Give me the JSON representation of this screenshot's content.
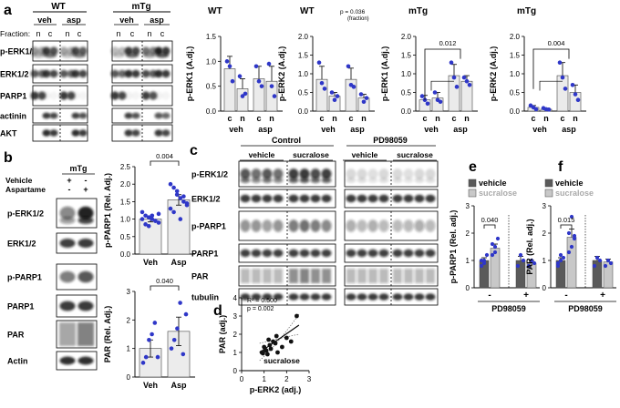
{
  "panel_a": {
    "letter": "a",
    "headers": {
      "wt": "WT",
      "mtg": "mTg",
      "veh": "veh",
      "asp": "asp"
    },
    "fraction_label": "Fraction:",
    "fraction_lanes": [
      "n",
      "c",
      "n",
      "c"
    ],
    "blot_labels": [
      "p-ERK1/2",
      "ERK1/2",
      "PARP1",
      "actinin",
      "AKT"
    ]
  },
  "panel_b": {
    "letter": "b",
    "group": "mTg",
    "treatments": [
      {
        "label": "Vehicle",
        "marks": [
          "+",
          "-"
        ]
      },
      {
        "label": "Aspartame",
        "marks": [
          "-",
          "+"
        ]
      }
    ],
    "blot_labels": [
      "p-ERK1/2",
      "ERK1/2",
      "p-PARP1",
      "PARP1",
      "PAR",
      "Actin"
    ]
  },
  "panel_c": {
    "letter": "c",
    "groups": [
      "Control",
      "PD98059"
    ],
    "treatments": [
      "vehicle",
      "sucralose",
      "vehicle",
      "sucralose"
    ],
    "blot_labels": [
      "p-ERK1/2",
      "ERK1/2",
      "p-PARP1",
      "PARP1",
      "PAR",
      "tubulin"
    ]
  },
  "panel_d": {
    "letter": "d"
  },
  "panel_e": {
    "letter": "e"
  },
  "panel_f": {
    "letter": "f"
  },
  "chart_data": [
    {
      "id": "a1",
      "type": "bar",
      "title": "WT",
      "ylabel": "p-ERK1 (A.dj.)",
      "categories": [
        "c",
        "n",
        "c",
        "n"
      ],
      "groups": [
        "veh",
        "asp"
      ],
      "values": [
        0.85,
        0.45,
        0.65,
        0.6
      ],
      "errors": [
        0.25,
        0.2,
        0.25,
        0.3
      ],
      "points": [
        [
          1.0,
          0.9,
          0.6
        ],
        [
          0.7,
          0.3,
          0.35
        ],
        [
          0.9,
          0.6,
          0.5
        ],
        [
          0.95,
          0.5,
          0.3
        ]
      ],
      "ylim": [
        0,
        1.5
      ],
      "yticks": [
        0,
        0.5,
        1,
        1.5
      ],
      "ytick_labels": [
        "0.0",
        "0.5",
        "1.0",
        "1.5"
      ]
    },
    {
      "id": "a2",
      "type": "bar",
      "title": "WT",
      "ylabel": "p-ERK2 (A.dj.)",
      "categories": [
        "c",
        "n",
        "c",
        "n"
      ],
      "groups": [
        "veh",
        "asp"
      ],
      "values": [
        0.85,
        0.4,
        0.85,
        0.35
      ],
      "errors": [
        0.35,
        0.1,
        0.3,
        0.1
      ],
      "points": [
        [
          1.3,
          0.75,
          0.6
        ],
        [
          0.5,
          0.3,
          0.4
        ],
        [
          1.2,
          0.7,
          0.65
        ],
        [
          0.45,
          0.25,
          0.35
        ]
      ],
      "ylim": [
        0,
        2.0
      ],
      "yticks": [
        0,
        0.5,
        1,
        1.5,
        2
      ],
      "ytick_labels": [
        "0.0",
        "0.5",
        "1.0",
        "1.5",
        "2.0"
      ],
      "annotations": [
        {
          "text": "p = 0.036",
          "sub": "(fraction)"
        }
      ]
    },
    {
      "id": "a3",
      "type": "bar",
      "title": "mTg",
      "ylabel": "p-ERK1 (A.dj.)",
      "categories": [
        "c",
        "n",
        "c",
        "n"
      ],
      "groups": [
        "veh",
        "asp"
      ],
      "values": [
        0.3,
        0.35,
        0.95,
        0.8
      ],
      "errors": [
        0.12,
        0.15,
        0.3,
        0.15
      ],
      "points": [
        [
          0.4,
          0.3,
          0.2
        ],
        [
          0.5,
          0.3,
          0.25
        ],
        [
          1.3,
          0.9,
          0.65
        ],
        [
          0.9,
          0.8,
          0.7
        ]
      ],
      "ylim": [
        0,
        2.0
      ],
      "yticks": [
        0,
        0.5,
        1,
        1.5,
        2
      ],
      "ytick_labels": [
        "0.0",
        "0.5",
        "1.0",
        "1.5",
        "2.0"
      ],
      "bracket": {
        "text": "0.012"
      }
    },
    {
      "id": "a4",
      "type": "bar",
      "title": "mTg",
      "ylabel": "p-ERK2 (A.dj.)",
      "categories": [
        "c",
        "n",
        "c",
        "n"
      ],
      "groups": [
        "veh",
        "asp"
      ],
      "values": [
        0.1,
        0.05,
        0.95,
        0.5
      ],
      "errors": [
        0.05,
        0.03,
        0.35,
        0.2
      ],
      "points": [
        [
          0.15,
          0.1,
          0.05
        ],
        [
          0.08,
          0.05,
          0.04
        ],
        [
          1.3,
          0.9,
          0.6
        ],
        [
          0.7,
          0.45,
          0.3
        ]
      ],
      "ylim": [
        0,
        2.0
      ],
      "yticks": [
        0,
        0.5,
        1,
        1.5,
        2
      ],
      "ytick_labels": [
        "0.0",
        "0.5",
        "1.0",
        "1.5",
        "2.0"
      ],
      "bracket": {
        "text": "0.004"
      }
    },
    {
      "id": "b1",
      "type": "bar",
      "ylabel": "p-PARP1 (Rel. Adj.)",
      "categories": [
        "Veh",
        "Asp"
      ],
      "values": [
        1.0,
        1.55
      ],
      "errors": [
        0.08,
        0.15
      ],
      "points": [
        [
          1.2,
          1.1,
          1.05,
          1.0,
          0.95,
          0.9,
          1.0,
          0.85,
          0.8,
          1.1,
          0.95,
          1.15
        ],
        [
          2.0,
          1.9,
          1.7,
          1.6,
          1.5,
          1.4,
          1.3,
          1.2,
          1.8,
          1.0,
          1.65,
          1.45
        ]
      ],
      "ylim": [
        0,
        2.5
      ],
      "yticks": [
        0,
        0.5,
        1,
        1.5,
        2,
        2.5
      ],
      "ytick_labels": [
        "0.0",
        "0.5",
        "1.0",
        "1.5",
        "2.0",
        "2.5"
      ],
      "bracket": {
        "text": "0.004"
      }
    },
    {
      "id": "b2",
      "type": "bar",
      "ylabel": "PAR (Rel. Adj.)",
      "categories": [
        "Veh",
        "Asp"
      ],
      "values": [
        1.0,
        1.6
      ],
      "errors": [
        0.3,
        0.5
      ],
      "points": [
        [
          0.5,
          0.7,
          1.3,
          1.5,
          1.9,
          0.7
        ],
        [
          1.0,
          1.3,
          1.7,
          2.6,
          0.8,
          2.2
        ]
      ],
      "ylim": [
        0,
        3.0
      ],
      "yticks": [
        0,
        1,
        2,
        3
      ],
      "ytick_labels": [
        "0",
        "1",
        "2",
        "3"
      ],
      "bracket": {
        "text": "0.040"
      }
    },
    {
      "id": "d",
      "type": "scatter",
      "xlabel": "p-ERK2 (adj.)",
      "ylabel": "PAR (adj.)",
      "xlim": [
        0,
        3
      ],
      "ylim": [
        0,
        4
      ],
      "xticks": [
        0,
        1,
        2,
        3
      ],
      "yticks": [
        0,
        1,
        2,
        3,
        4
      ],
      "x": [
        0.9,
        0.95,
        1.0,
        1.1,
        1.2,
        1.25,
        1.3,
        1.4,
        1.5,
        1.55,
        1.6,
        1.8,
        2.0,
        2.2,
        2.45,
        1.15,
        1.05
      ],
      "y": [
        1.0,
        0.95,
        1.3,
        1.1,
        1.7,
        1.4,
        1.2,
        1.6,
        1.5,
        1.9,
        1.0,
        1.3,
        1.8,
        1.6,
        3.0,
        0.9,
        1.15
      ],
      "fit": {
        "x": [
          0.8,
          2.55
        ],
        "y": [
          1.0,
          2.5
        ]
      },
      "annotations": [
        "R² = 0.500",
        "p = 0.002",
        "sucralose"
      ]
    },
    {
      "id": "e",
      "type": "bar",
      "ylabel": "p-PARP1 (Rel. adj.)",
      "xlabel": "PD98059",
      "groups": [
        "-",
        "+"
      ],
      "series": [
        {
          "name": "vehicle",
          "color": "#5a5a5a",
          "values": [
            1.0,
            1.0
          ],
          "errors": [
            0.1,
            0.15
          ],
          "points": [
            [
              0.8,
              1.0,
              1.2,
              1.0,
              0.9
            ],
            [
              0.8,
              1.2,
              1.0
            ]
          ]
        },
        {
          "name": "sucralose",
          "color": "#c8c8c8",
          "values": [
            1.45,
            0.9
          ],
          "errors": [
            0.15,
            0.1
          ],
          "points": [
            [
              1.2,
              1.3,
              1.8,
              1.6,
              1.5
            ],
            [
              0.8,
              1.0,
              0.9
            ]
          ]
        }
      ],
      "ylim": [
        0,
        3.0
      ],
      "yticks": [
        0,
        1,
        2,
        3
      ],
      "ytick_labels": [
        "0",
        "1",
        "2",
        "3"
      ],
      "bracket": {
        "text": "0.040"
      }
    },
    {
      "id": "f",
      "type": "bar",
      "ylabel": "PAR (Rel. adj.)",
      "xlabel": "PD98059",
      "groups": [
        "-",
        "+"
      ],
      "series": [
        {
          "name": "vehicle",
          "color": "#5a5a5a",
          "values": [
            1.0,
            1.0
          ],
          "errors": [
            0.1,
            0.15
          ],
          "points": [
            [
              0.8,
              1.0,
              1.1,
              0.9,
              1.2
            ],
            [
              0.8,
              1.1,
              1.0
            ]
          ]
        },
        {
          "name": "sucralose",
          "color": "#c8c8c8",
          "values": [
            1.85,
            0.95
          ],
          "errors": [
            0.3,
            0.1
          ],
          "points": [
            [
              1.3,
              1.5,
              1.9,
              2.0,
              2.6,
              1.8
            ],
            [
              0.8,
              1.0,
              0.9
            ]
          ]
        }
      ],
      "ylim": [
        0,
        3.0
      ],
      "yticks": [
        0,
        1,
        2,
        3
      ],
      "ytick_labels": [
        "0",
        "1",
        "2",
        "3"
      ],
      "bracket": {
        "text": "0.015"
      }
    }
  ]
}
